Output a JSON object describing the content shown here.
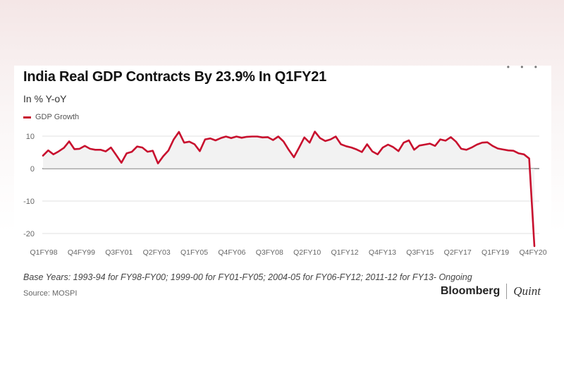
{
  "header": {
    "title": "India Real GDP Contracts By 23.9% In Q1FY21",
    "subtitle": "In % Y-oY",
    "menu_icon": "ellipsis-icon"
  },
  "footer": {
    "note": "Base Years: 1993-94 for FY98-FY00; 1999-00 for FY01-FY05; 2004-05 for FY06-FY12; 2011-12 for FY13- Ongoing",
    "source": "Source: MOSPI",
    "brand_primary": "Bloomberg",
    "brand_secondary": "Quint"
  },
  "chart_data": {
    "type": "line",
    "title": "India Real GDP Contracts By 23.9% In Q1FY21",
    "subtitle": "In % Y-oY",
    "xlabel": "",
    "ylabel": "",
    "ylim": [
      -23.9,
      12
    ],
    "y_ticks": [
      -20,
      -10,
      0,
      10
    ],
    "x_tick_labels": [
      "Q1FY98",
      "Q4FY99",
      "Q3FY01",
      "Q2FY03",
      "Q1FY05",
      "Q4FY06",
      "Q3FY08",
      "Q2FY10",
      "Q1FY12",
      "Q4FY13",
      "Q3FY15",
      "Q2FY17",
      "Q1FY19",
      "Q4FY20"
    ],
    "grid": true,
    "legend_position": "top-left",
    "color": "#c8102e",
    "series": [
      {
        "name": "GDP Growth",
        "values": [
          4.0,
          5.6,
          4.4,
          5.3,
          6.4,
          8.4,
          6.0,
          6.1,
          7.0,
          6.1,
          5.8,
          5.8,
          5.3,
          6.5,
          4.2,
          1.8,
          4.7,
          5.2,
          6.8,
          6.5,
          5.2,
          5.5,
          1.6,
          3.8,
          5.6,
          9.0,
          11.3,
          8.0,
          8.3,
          7.5,
          5.4,
          9.0,
          9.3,
          8.7,
          9.4,
          9.9,
          9.4,
          9.9,
          9.5,
          9.8,
          9.9,
          9.9,
          9.6,
          9.7,
          8.8,
          9.9,
          8.4,
          5.8,
          3.5,
          6.5,
          9.6,
          8.0,
          11.4,
          9.4,
          8.5,
          9.0,
          9.9,
          7.5,
          6.9,
          6.5,
          5.9,
          5.1,
          7.5,
          5.3,
          4.4,
          6.5,
          7.4,
          6.6,
          5.4,
          8.0,
          8.7,
          5.8,
          7.1,
          7.4,
          7.7,
          7.0,
          9.0,
          8.6,
          9.7,
          8.3,
          6.1,
          5.8,
          6.5,
          7.4,
          8.0,
          8.1,
          7.0,
          6.2,
          5.9,
          5.6,
          5.5,
          4.7,
          4.4,
          3.1,
          -23.9
        ]
      }
    ]
  }
}
